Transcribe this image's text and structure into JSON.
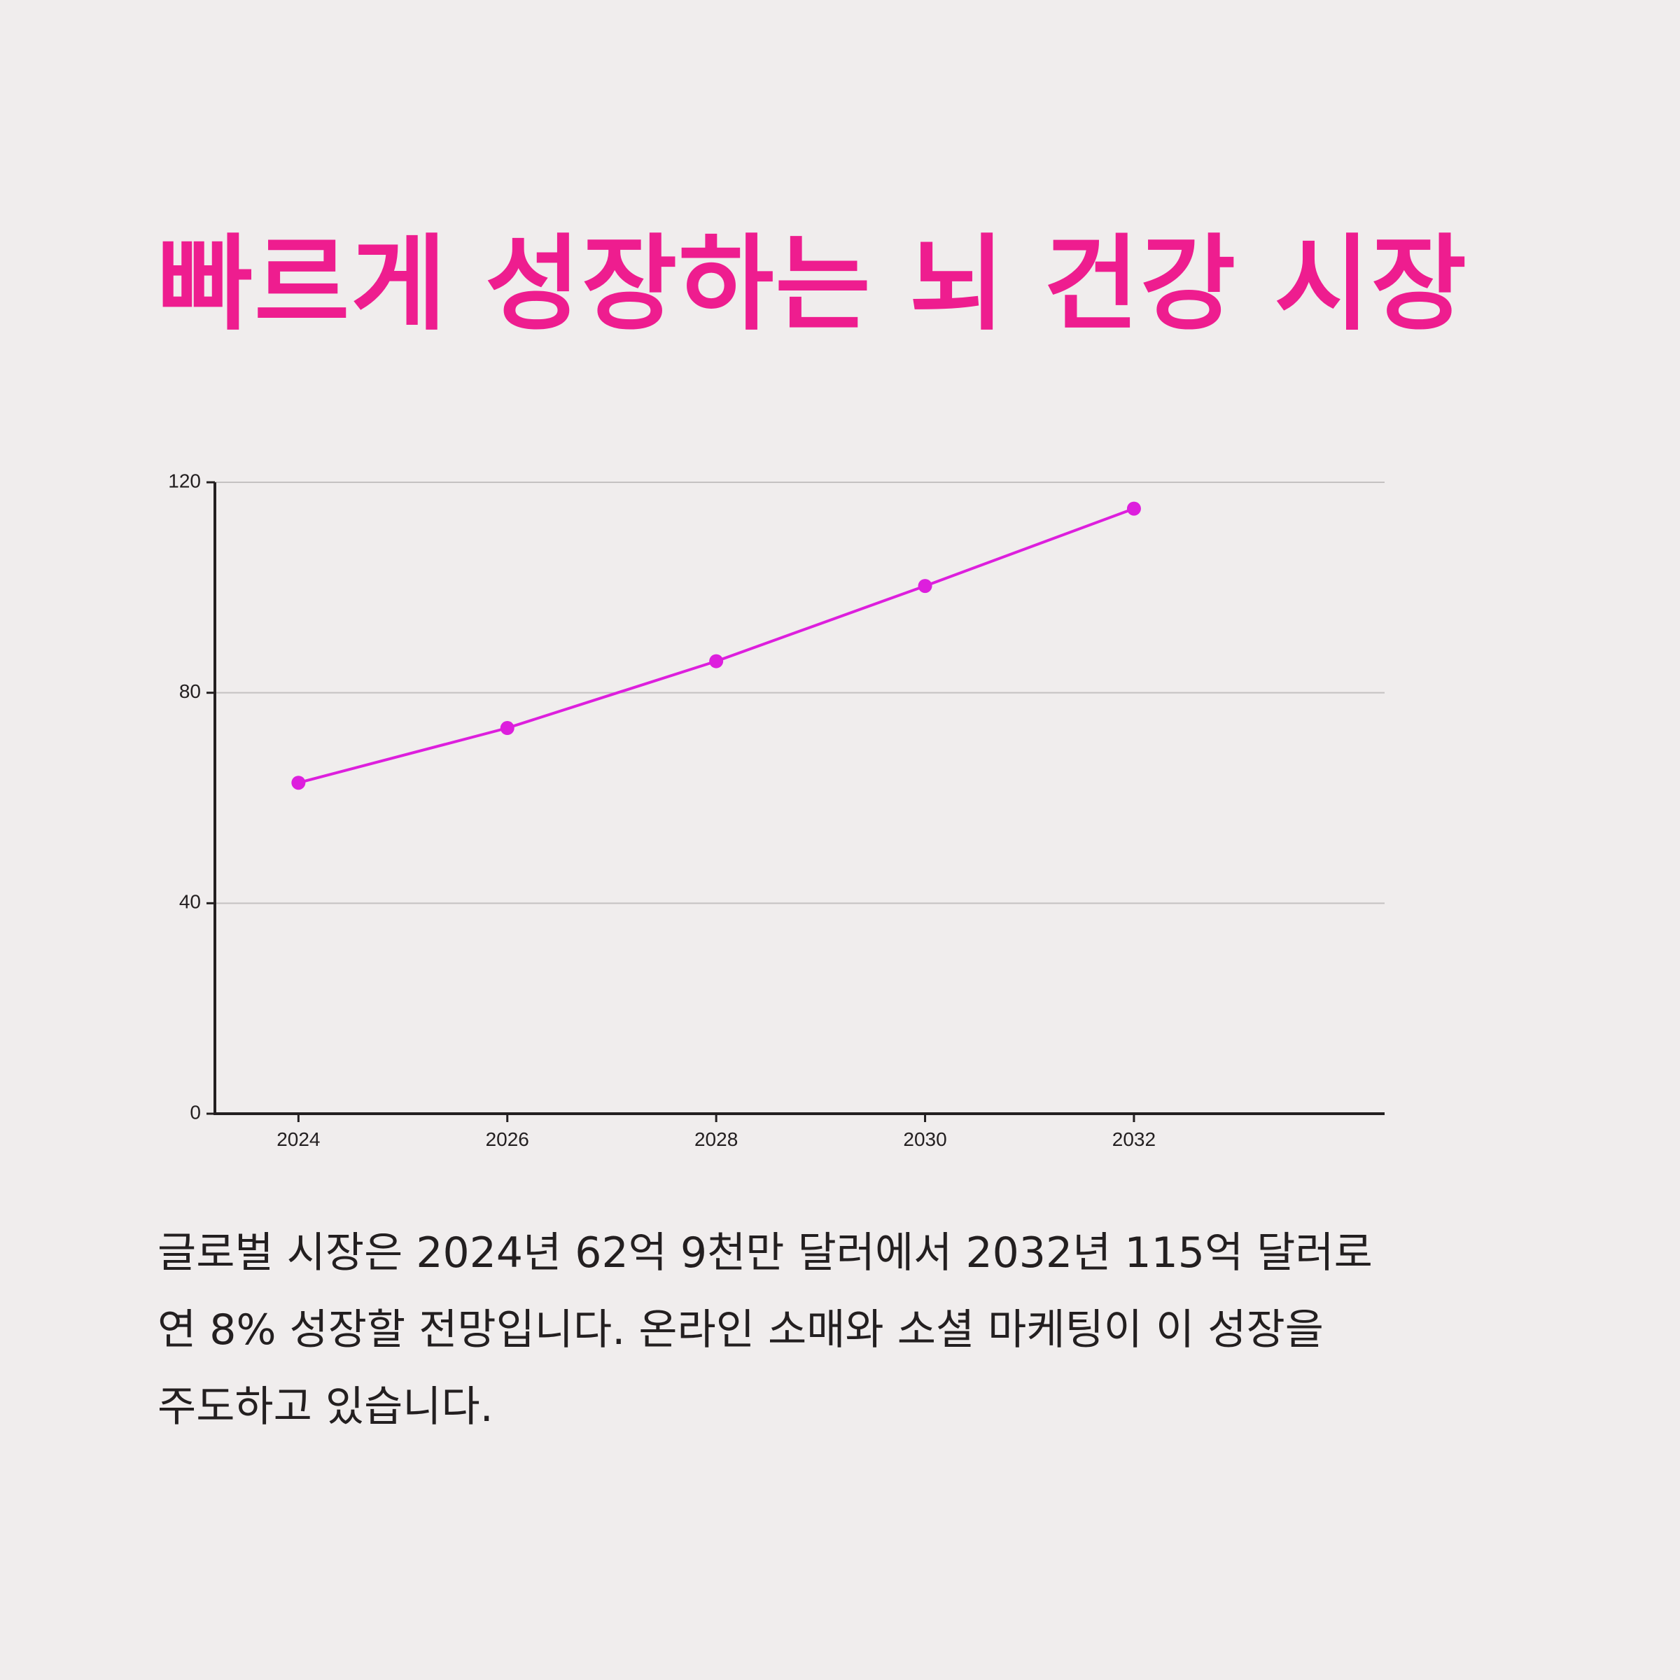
{
  "title": "빠르게 성장하는 뇌 건강 시장",
  "description": {
    "line1": "글로벌 시장은 2024년 62억 9천만 달러에서 2032년 115억 달러로",
    "line2": "연 8% 성장할 전망입니다. 온라인 소매와 소셜 마케팅이 이 성장을",
    "line3": "주도하고 있습니다."
  },
  "colors": {
    "background": "#f0eded",
    "title": "#ee1d8f",
    "series": "#dd1fdd",
    "axis": "#231f20",
    "grid": "#c4c1c1",
    "text": "#231f20"
  },
  "chart_data": {
    "type": "line",
    "title": "",
    "xlabel": "",
    "ylabel": "",
    "x": [
      2024,
      2026,
      2028,
      2030,
      2032
    ],
    "series": [
      {
        "values": [
          62.9,
          73.3,
          86.0,
          100.3,
          115.0
        ]
      }
    ],
    "xlim": [
      2023.2,
      2034.4
    ],
    "ylim": [
      0,
      120
    ],
    "yticks": [
      0,
      40,
      80,
      120
    ],
    "xticks": [
      2024,
      2026,
      2028,
      2030,
      2032
    ],
    "grid": true,
    "legend": "none"
  }
}
